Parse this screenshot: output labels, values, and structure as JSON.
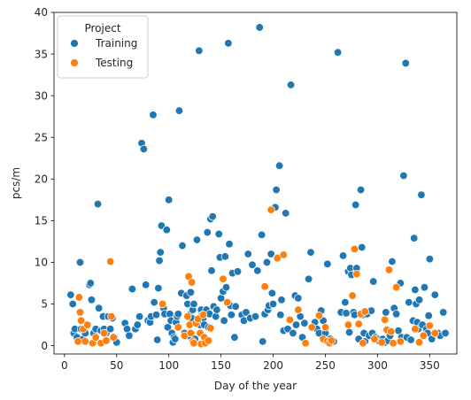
{
  "chart_data": {
    "type": "scatter",
    "title": "",
    "xlabel": "Day of the year",
    "ylabel": "pcs/m",
    "xlim": [
      -10,
      376
    ],
    "ylim": [
      -1,
      40
    ],
    "x_ticks": [
      0,
      50,
      100,
      150,
      200,
      250,
      300,
      350
    ],
    "y_ticks": [
      0,
      5,
      10,
      15,
      20,
      25,
      30,
      35,
      40
    ],
    "grid": false,
    "legend": {
      "title": "Project",
      "placement": "top-left",
      "entries": [
        "Training",
        "Testing"
      ]
    },
    "series": [
      {
        "name": "Training",
        "color": "#1f77b4",
        "points": [
          [
            6,
            6.1
          ],
          [
            8,
            5
          ],
          [
            9,
            1.5
          ],
          [
            10,
            2
          ],
          [
            12,
            1
          ],
          [
            15,
            10
          ],
          [
            16,
            2
          ],
          [
            18,
            0.8
          ],
          [
            20,
            1.5
          ],
          [
            22,
            2.5
          ],
          [
            24,
            7.3
          ],
          [
            25,
            7.5
          ],
          [
            26,
            5.5
          ],
          [
            28,
            1.5
          ],
          [
            30,
            2
          ],
          [
            32,
            17
          ],
          [
            33,
            4.5
          ],
          [
            35,
            1.8
          ],
          [
            37,
            3.5
          ],
          [
            38,
            2
          ],
          [
            40,
            1.5
          ],
          [
            42,
            3.5
          ],
          [
            44,
            2
          ],
          [
            46,
            3.3
          ],
          [
            48,
            1
          ],
          [
            50,
            0.4
          ],
          [
            58,
            2.7
          ],
          [
            60,
            2
          ],
          [
            62,
            1.2
          ],
          [
            65,
            6.8
          ],
          [
            68,
            2
          ],
          [
            70,
            2.5
          ],
          [
            72,
            3.5
          ],
          [
            74,
            24.3
          ],
          [
            76,
            23.6
          ],
          [
            78,
            7.3
          ],
          [
            80,
            3
          ],
          [
            82,
            2.8
          ],
          [
            83,
            3.5
          ],
          [
            85,
            27.7
          ],
          [
            86,
            5.2
          ],
          [
            88,
            3.7
          ],
          [
            89,
            0.7
          ],
          [
            90,
            6.9
          ],
          [
            91,
            10.2
          ],
          [
            92,
            11.2
          ],
          [
            93,
            14.4
          ],
          [
            95,
            4.5
          ],
          [
            96,
            3.8
          ],
          [
            98,
            13.9
          ],
          [
            99,
            2.2
          ],
          [
            100,
            17.5
          ],
          [
            101,
            3.8
          ],
          [
            102,
            3
          ],
          [
            103,
            1.5
          ],
          [
            104,
            0.4
          ],
          [
            105,
            1
          ],
          [
            106,
            0.8
          ],
          [
            107,
            2.8
          ],
          [
            108,
            3.5
          ],
          [
            109,
            3.8
          ],
          [
            110,
            28.2
          ],
          [
            112,
            6.3
          ],
          [
            113,
            12
          ],
          [
            115,
            1.5
          ],
          [
            117,
            6
          ],
          [
            118,
            5
          ],
          [
            119,
            1.2
          ],
          [
            120,
            3.7
          ],
          [
            121,
            6.4
          ],
          [
            122,
            3.3
          ],
          [
            123,
            4.3
          ],
          [
            124,
            5
          ],
          [
            125,
            0.8
          ],
          [
            127,
            12.7
          ],
          [
            129,
            35.4
          ],
          [
            130,
            2.5
          ],
          [
            131,
            4.3
          ],
          [
            132,
            3.7
          ],
          [
            133,
            3.3
          ],
          [
            134,
            2.5
          ],
          [
            135,
            3.8
          ],
          [
            136,
            4.3
          ],
          [
            137,
            13.6
          ],
          [
            138,
            2.2
          ],
          [
            139,
            3.8
          ],
          [
            140,
            15.2
          ],
          [
            141,
            9
          ],
          [
            142,
            15.5
          ],
          [
            143,
            4.7
          ],
          [
            145,
            3.5
          ],
          [
            146,
            4.3
          ],
          [
            148,
            13.4
          ],
          [
            149,
            10.6
          ],
          [
            150,
            5.7
          ],
          [
            152,
            6.5
          ],
          [
            153,
            3
          ],
          [
            154,
            10.7
          ],
          [
            155,
            7
          ],
          [
            157,
            36.3
          ],
          [
            158,
            12.2
          ],
          [
            159,
            4.8
          ],
          [
            160,
            3.7
          ],
          [
            161,
            8.7
          ],
          [
            163,
            1
          ],
          [
            164,
            4.7
          ],
          [
            166,
            8.9
          ],
          [
            170,
            3.7
          ],
          [
            172,
            3
          ],
          [
            174,
            4
          ],
          [
            176,
            11
          ],
          [
            178,
            3.3
          ],
          [
            180,
            9.7
          ],
          [
            183,
            3.5
          ],
          [
            185,
            9
          ],
          [
            187,
            38.2
          ],
          [
            189,
            13.3
          ],
          [
            190,
            0.5
          ],
          [
            192,
            3.8
          ],
          [
            194,
            10
          ],
          [
            195,
            4.3
          ],
          [
            196,
            4.8
          ],
          [
            198,
            11
          ],
          [
            199,
            6.3
          ],
          [
            200,
            5
          ],
          [
            202,
            16.6
          ],
          [
            203,
            18.7
          ],
          [
            204,
            10.6
          ],
          [
            206,
            21.6
          ],
          [
            207,
            3.7
          ],
          [
            208,
            5.5
          ],
          [
            210,
            1.8
          ],
          [
            212,
            15.9
          ],
          [
            214,
            2
          ],
          [
            217,
            31.3
          ],
          [
            219,
            1.5
          ],
          [
            221,
            6
          ],
          [
            222,
            2.5
          ],
          [
            224,
            5.7
          ],
          [
            226,
            3.5
          ],
          [
            228,
            1
          ],
          [
            230,
            2.7
          ],
          [
            234,
            8
          ],
          [
            236,
            11.2
          ],
          [
            240,
            2.8
          ],
          [
            242,
            2
          ],
          [
            244,
            1.5
          ],
          [
            246,
            4.2
          ],
          [
            248,
            3
          ],
          [
            250,
            1.5
          ],
          [
            252,
            9.8
          ],
          [
            253,
            0.5
          ],
          [
            255,
            0.8
          ],
          [
            258,
            0.5
          ],
          [
            262,
            35.2
          ],
          [
            265,
            4
          ],
          [
            267,
            10.8
          ],
          [
            269,
            5.2
          ],
          [
            270,
            3.9
          ],
          [
            272,
            8.9
          ],
          [
            273,
            1.6
          ],
          [
            274,
            9.3
          ],
          [
            275,
            8.5
          ],
          [
            277,
            4
          ],
          [
            278,
            3.7
          ],
          [
            279,
            16.9
          ],
          [
            280,
            9.3
          ],
          [
            282,
            0.8
          ],
          [
            284,
            18.7
          ],
          [
            285,
            11.8
          ],
          [
            286,
            3.7
          ],
          [
            287,
            1.5
          ],
          [
            288,
            0.5
          ],
          [
            290,
            3.8
          ],
          [
            292,
            1.2
          ],
          [
            294,
            4.2
          ],
          [
            295,
            1.5
          ],
          [
            296,
            7.7
          ],
          [
            298,
            1
          ],
          [
            300,
            0.8
          ],
          [
            302,
            0.5
          ],
          [
            305,
            0.8
          ],
          [
            307,
            0.4
          ],
          [
            308,
            4
          ],
          [
            310,
            0.6
          ],
          [
            312,
            1.2
          ],
          [
            314,
            10.1
          ],
          [
            316,
            4.5
          ],
          [
            318,
            3.8
          ],
          [
            320,
            1.8
          ],
          [
            322,
            7.5
          ],
          [
            323,
            1
          ],
          [
            325,
            20.4
          ],
          [
            327,
            33.9
          ],
          [
            328,
            1
          ],
          [
            330,
            5.2
          ],
          [
            332,
            0.7
          ],
          [
            334,
            3
          ],
          [
            335,
            12.9
          ],
          [
            336,
            6.7
          ],
          [
            337,
            5
          ],
          [
            338,
            2.8
          ],
          [
            339,
            2
          ],
          [
            340,
            5.5
          ],
          [
            342,
            18.1
          ],
          [
            343,
            2.5
          ],
          [
            345,
            7
          ],
          [
            347,
            2
          ],
          [
            348,
            1.5
          ],
          [
            349,
            3.6
          ],
          [
            350,
            10.4
          ],
          [
            352,
            0.8
          ],
          [
            355,
            6.1
          ],
          [
            358,
            1.5
          ],
          [
            360,
            1.2
          ],
          [
            363,
            4
          ],
          [
            365,
            1.5
          ]
        ]
      },
      {
        "name": "Testing",
        "color": "#ff7f0e",
        "points": [
          [
            13,
            0.5
          ],
          [
            14,
            5.8
          ],
          [
            15,
            4
          ],
          [
            16,
            3
          ],
          [
            18,
            2
          ],
          [
            20,
            0.5
          ],
          [
            22,
            2.5
          ],
          [
            27,
            0.3
          ],
          [
            30,
            1
          ],
          [
            35,
            0.3
          ],
          [
            38,
            1.5
          ],
          [
            40,
            0.6
          ],
          [
            44,
            10.1
          ],
          [
            45,
            3.5
          ],
          [
            47,
            1
          ],
          [
            94,
            5
          ],
          [
            109,
            2.2
          ],
          [
            115,
            1.2
          ],
          [
            118,
            3.5
          ],
          [
            119,
            8.3
          ],
          [
            120,
            2.5
          ],
          [
            121,
            1.5
          ],
          [
            122,
            7.6
          ],
          [
            123,
            0.5
          ],
          [
            124,
            0.3
          ],
          [
            126,
            2.7
          ],
          [
            128,
            3.2
          ],
          [
            130,
            1.5
          ],
          [
            131,
            0.2
          ],
          [
            133,
            3.7
          ],
          [
            134,
            1
          ],
          [
            135,
            0.3
          ],
          [
            138,
            0.6
          ],
          [
            140,
            2.1
          ],
          [
            152,
            8
          ],
          [
            156,
            5.2
          ],
          [
            192,
            7.1
          ],
          [
            198,
            16.3
          ],
          [
            204,
            10.5
          ],
          [
            210,
            10.9
          ],
          [
            216,
            3.1
          ],
          [
            224,
            4.3
          ],
          [
            231,
            0.3
          ],
          [
            237,
            2.2
          ],
          [
            244,
            3.6
          ],
          [
            248,
            0.8
          ],
          [
            250,
            2.2
          ],
          [
            252,
            0.5
          ],
          [
            254,
            0.3
          ],
          [
            256,
            0.6
          ],
          [
            272,
            2.5
          ],
          [
            276,
            6
          ],
          [
            278,
            11.6
          ],
          [
            280,
            8.6
          ],
          [
            282,
            2.6
          ],
          [
            284,
            3.8
          ],
          [
            286,
            0.3
          ],
          [
            288,
            4.1
          ],
          [
            297,
            0.8
          ],
          [
            304,
            0.4
          ],
          [
            307,
            3.1
          ],
          [
            309,
            1.9
          ],
          [
            311,
            9.1
          ],
          [
            313,
            1.7
          ],
          [
            315,
            0.3
          ],
          [
            318,
            7
          ],
          [
            322,
            0.5
          ],
          [
            336,
            2
          ],
          [
            340,
            0.4
          ],
          [
            344,
            1.2
          ],
          [
            350,
            2.4
          ],
          [
            355,
            1.5
          ]
        ]
      }
    ]
  }
}
